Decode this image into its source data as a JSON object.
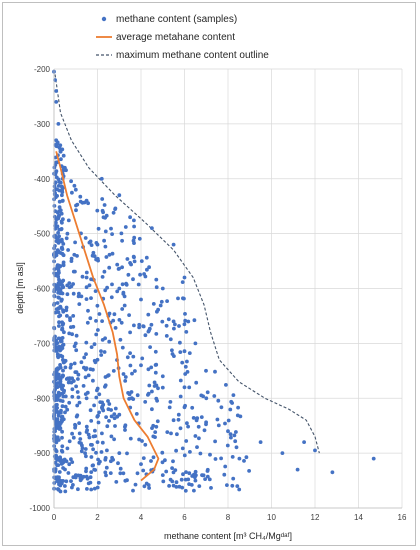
{
  "chart_data": {
    "type": "scatter",
    "xlabel": "methane content [m³ CH₄/Mgᵈᵃᶠ]",
    "ylabel": "depth [m asl]",
    "xlim": [
      0,
      16
    ],
    "ylim": [
      -1000,
      -200
    ],
    "x_ticks": [
      "0",
      "2",
      "4",
      "6",
      "8",
      "10",
      "12",
      "14",
      "16"
    ],
    "y_ticks": [
      "-200",
      "-300",
      "-400",
      "-500",
      "-600",
      "-700",
      "-800",
      "-900",
      "-1000"
    ],
    "grid": true,
    "legend": "top",
    "colors": {
      "samples": "#4472c4",
      "average": "#ed7d31",
      "outline": "#44546a"
    },
    "series": [
      {
        "name": "methane content (samples)",
        "kind": "scatter",
        "representative_points": [
          [
            0.0,
            -205
          ],
          [
            0.05,
            -220
          ],
          [
            0.1,
            -240
          ],
          [
            0.1,
            -260
          ],
          [
            0.2,
            -300
          ],
          [
            0.1,
            -330
          ],
          [
            0.3,
            -350
          ],
          [
            0.5,
            -380
          ],
          [
            0.4,
            -400
          ],
          [
            1.0,
            -420
          ],
          [
            1.5,
            -440
          ],
          [
            2.2,
            -400
          ],
          [
            3.0,
            -430
          ],
          [
            3.5,
            -470
          ],
          [
            4.5,
            -490
          ],
          [
            5.5,
            -520
          ],
          [
            2.0,
            -520
          ],
          [
            0.8,
            -550
          ],
          [
            1.5,
            -580
          ],
          [
            3.0,
            -600
          ],
          [
            4.0,
            -620
          ],
          [
            5.0,
            -600
          ],
          [
            6.0,
            -580
          ],
          [
            2.5,
            -650
          ],
          [
            3.5,
            -680
          ],
          [
            5.5,
            -660
          ],
          [
            6.5,
            -700
          ],
          [
            1.0,
            -700
          ],
          [
            2.0,
            -730
          ],
          [
            4.0,
            -740
          ],
          [
            5.0,
            -760
          ],
          [
            6.0,
            -780
          ],
          [
            7.0,
            -800
          ],
          [
            1.5,
            -800
          ],
          [
            2.5,
            -820
          ],
          [
            3.0,
            -830
          ],
          [
            4.5,
            -820
          ],
          [
            5.5,
            -840
          ],
          [
            8.0,
            -860
          ],
          [
            9.5,
            -880
          ],
          [
            10.5,
            -900
          ],
          [
            11.5,
            -880
          ],
          [
            12.0,
            -895
          ],
          [
            12.8,
            -935
          ],
          [
            14.7,
            -910
          ],
          [
            11.2,
            -930
          ],
          [
            2.0,
            -880
          ],
          [
            3.0,
            -900
          ],
          [
            4.0,
            -920
          ],
          [
            5.0,
            -940
          ],
          [
            6.5,
            -950
          ],
          [
            0.5,
            -960
          ],
          [
            0.3,
            -970
          ],
          [
            1.0,
            -940
          ]
        ]
      },
      {
        "name": "average metahane content",
        "kind": "line",
        "x": [
          0.1,
          0.3,
          0.6,
          1.0,
          1.4,
          1.8,
          2.3,
          2.7,
          2.9,
          3.0,
          3.2,
          3.7,
          4.3,
          4.8,
          4.6,
          4.0
        ],
        "y": [
          -350,
          -380,
          -430,
          -480,
          -530,
          -580,
          -630,
          -680,
          -720,
          -760,
          -800,
          -840,
          -870,
          -910,
          -930,
          -950
        ]
      },
      {
        "name": "maximum methane content outline",
        "kind": "dashed-line",
        "x": [
          0.05,
          0.3,
          0.8,
          1.6,
          2.8,
          4.2,
          5.5,
          6.4,
          6.9,
          7.2,
          7.6,
          8.5,
          9.7,
          10.8,
          11.6,
          12.0,
          12.2
        ],
        "y": [
          -210,
          -280,
          -330,
          -380,
          -430,
          -480,
          -530,
          -580,
          -630,
          -680,
          -730,
          -770,
          -800,
          -820,
          -840,
          -870,
          -900
        ]
      }
    ]
  }
}
